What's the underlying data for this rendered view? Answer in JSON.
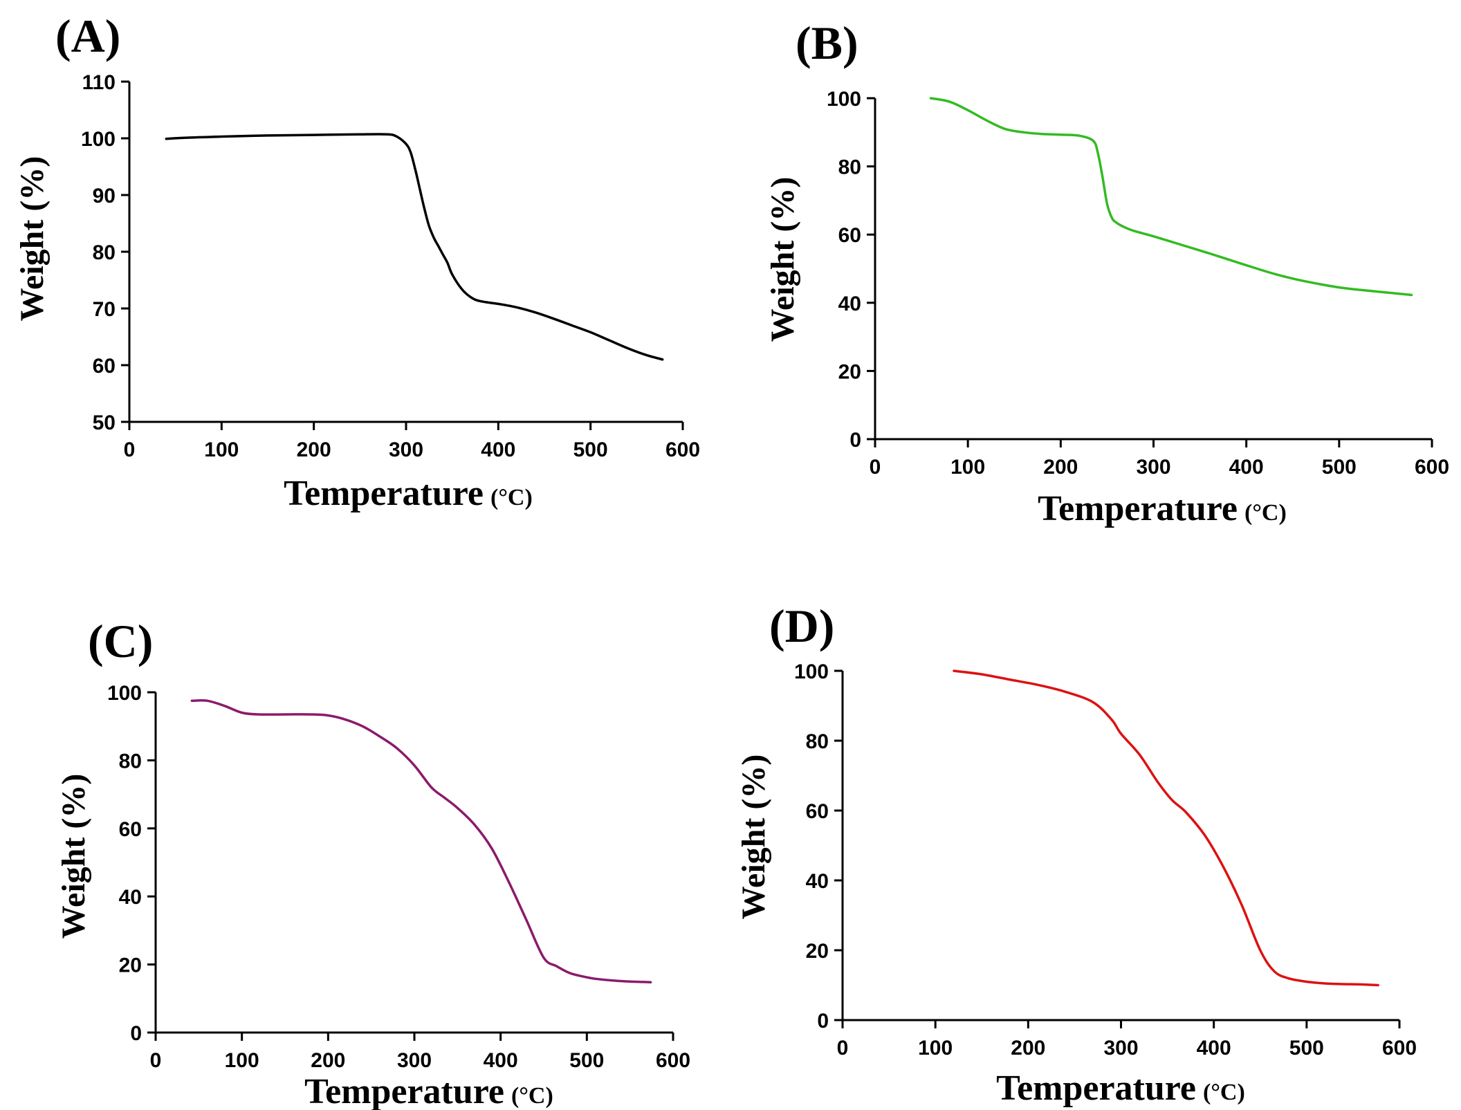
{
  "chart_data": [
    {
      "type": "line",
      "panel_label": "(A)",
      "title": "",
      "xlabel": "Temperature",
      "xunit": "(°C)",
      "ylabel": "Weight (%)",
      "xlim": [
        0,
        600
      ],
      "ylim": [
        50,
        110
      ],
      "xticks": [
        "0",
        "100",
        "200",
        "300",
        "400",
        "500",
        "600"
      ],
      "yticks": [
        "50",
        "60",
        "70",
        "80",
        "90",
        "100",
        "110"
      ],
      "grid": false,
      "color": "#000000",
      "series": [
        {
          "name": "A",
          "x": [
            40,
            60,
            100,
            150,
            200,
            250,
            280,
            290,
            300,
            305,
            310,
            315,
            320,
            325,
            330,
            335,
            340,
            345,
            350,
            360,
            370,
            380,
            400,
            420,
            440,
            460,
            480,
            500,
            520,
            540,
            560,
            578
          ],
          "y": [
            99.9,
            100.1,
            100.3,
            100.5,
            100.6,
            100.7,
            100.7,
            100.3,
            99,
            97.5,
            94.5,
            91,
            87.5,
            84.5,
            82.5,
            81,
            79.5,
            78,
            76,
            73.5,
            72,
            71.3,
            70.8,
            70.2,
            69.3,
            68.2,
            67,
            65.8,
            64.4,
            63,
            61.8,
            61
          ]
        }
      ]
    },
    {
      "type": "line",
      "panel_label": "(B)",
      "title": "",
      "xlabel": "Temperature",
      "xunit": "(°C)",
      "ylabel": "Weight (%)",
      "xlim": [
        0,
        600
      ],
      "ylim": [
        0,
        100
      ],
      "xticks": [
        "0",
        "100",
        "200",
        "300",
        "400",
        "500",
        "600"
      ],
      "yticks": [
        "0",
        "20",
        "40",
        "60",
        "80",
        "100"
      ],
      "grid": false,
      "color": "#33bb22",
      "series": [
        {
          "name": "B",
          "x": [
            60,
            80,
            100,
            120,
            140,
            160,
            180,
            200,
            220,
            235,
            240,
            245,
            250,
            255,
            260,
            270,
            280,
            300,
            330,
            360,
            400,
            430,
            460,
            500,
            540,
            578
          ],
          "y": [
            100,
            99,
            96.5,
            93.5,
            91,
            90,
            89.5,
            89.3,
            89,
            87.5,
            84,
            77,
            69,
            65,
            63.5,
            62,
            61,
            59.5,
            57,
            54.5,
            51,
            48.5,
            46.5,
            44.5,
            43.3,
            42.3
          ]
        }
      ]
    },
    {
      "type": "line",
      "panel_label": "(C)",
      "title": "",
      "xlabel": "Temperature",
      "xunit": "(°C)",
      "ylabel": "Weight (%)",
      "xlim": [
        0,
        600
      ],
      "ylim": [
        0,
        100
      ],
      "xticks": [
        "0",
        "100",
        "200",
        "300",
        "400",
        "500",
        "600"
      ],
      "yticks": [
        "0",
        "20",
        "40",
        "60",
        "80",
        "100"
      ],
      "grid": false,
      "color": "#8b1a6b",
      "series": [
        {
          "name": "C",
          "x": [
            42,
            60,
            80,
            100,
            120,
            150,
            180,
            200,
            220,
            240,
            260,
            280,
            300,
            320,
            335,
            350,
            370,
            390,
            410,
            430,
            450,
            465,
            480,
            495,
            510,
            530,
            550,
            574
          ],
          "y": [
            97.5,
            97.5,
            96,
            94,
            93.5,
            93.5,
            93.5,
            93.2,
            92,
            90,
            87,
            83.5,
            78.5,
            72,
            69,
            66,
            61,
            54,
            44,
            33,
            22,
            19.5,
            17.5,
            16.5,
            15.8,
            15.3,
            15,
            14.8
          ]
        }
      ]
    },
    {
      "type": "line",
      "panel_label": "(D)",
      "title": "",
      "xlabel": "Temperature",
      "xunit": "(°C)",
      "ylabel": "Weight (%)",
      "xlim": [
        0,
        600
      ],
      "ylim": [
        0,
        100
      ],
      "xticks": [
        "0",
        "100",
        "200",
        "300",
        "400",
        "500",
        "600"
      ],
      "yticks": [
        "0",
        "20",
        "40",
        "60",
        "80",
        "100"
      ],
      "grid": false,
      "color": "#dd1111",
      "series": [
        {
          "name": "D",
          "x": [
            120,
            150,
            180,
            210,
            240,
            270,
            290,
            300,
            320,
            340,
            355,
            370,
            390,
            410,
            430,
            450,
            465,
            480,
            500,
            520,
            540,
            560,
            577
          ],
          "y": [
            100,
            99,
            97.5,
            96,
            94,
            91,
            86,
            82,
            76,
            68,
            63,
            59.5,
            53,
            44,
            33,
            20,
            14,
            12,
            11,
            10.5,
            10.3,
            10.2,
            10
          ]
        }
      ]
    }
  ]
}
